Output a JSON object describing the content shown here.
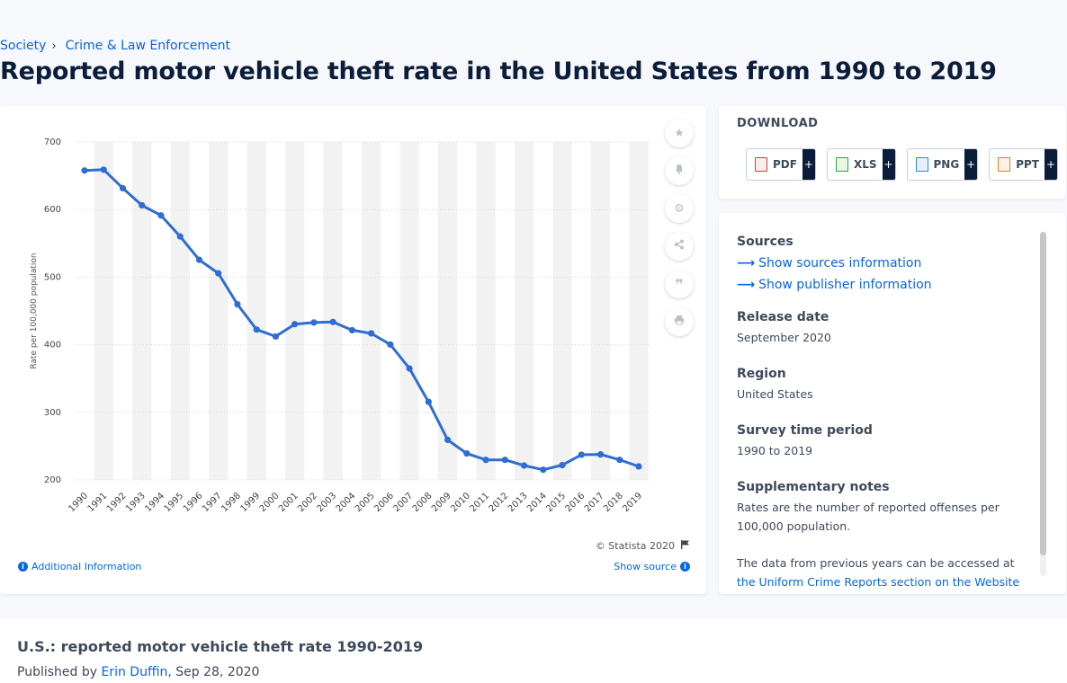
{
  "breadcrumb": {
    "items": [
      "Society",
      "Crime & Law Enforcement"
    ],
    "separator": "›"
  },
  "page_title": "Reported motor vehicle theft rate in the United States from 1990 to 2019",
  "chart_data": {
    "type": "line",
    "title": "",
    "xlabel": "",
    "ylabel": "Rate per 100,000 population",
    "categories": [
      "1990",
      "1991",
      "1992",
      "1993",
      "1994",
      "1995",
      "1996",
      "1997",
      "1998",
      "1999",
      "2000",
      "2001",
      "2002",
      "2003",
      "2004",
      "2005",
      "2006",
      "2007",
      "2008",
      "2009",
      "2010",
      "2011",
      "2012",
      "2013",
      "2014",
      "2015",
      "2016",
      "2017",
      "2018",
      "2019"
    ],
    "series": [
      {
        "values": [
          657.8,
          659.0,
          631.6,
          606.3,
          591.3,
          560.3,
          525.7,
          505.7,
          459.9,
          422.5,
          412.2,
          430.5,
          432.9,
          433.7,
          421.5,
          416.8,
          400.2,
          364.9,
          315.4,
          259.2,
          239.1,
          229.6,
          229.7,
          221.3,
          215.0,
          221.9,
          237.3,
          237.7,
          229.7,
          219.9
        ]
      }
    ],
    "ylim": [
      200,
      700
    ],
    "yticks": [
      200,
      300,
      400,
      500,
      600,
      700
    ],
    "grid": true,
    "line_color": "#2f6dd2",
    "band_color": "#f2f2f2"
  },
  "tools": {
    "icons": [
      "star-icon",
      "bell-icon",
      "gear-icon",
      "share-icon",
      "quote-icon",
      "print-icon"
    ]
  },
  "copyright": "© Statista 2020",
  "additional_info": "Additional Information",
  "show_source": "Show source",
  "download": {
    "title": "DOWNLOAD",
    "buttons": [
      {
        "label": "PDF",
        "plus": "+",
        "color": "#d63a3a"
      },
      {
        "label": "XLS",
        "plus": "+",
        "color": "#3a9d3a"
      },
      {
        "label": "PNG",
        "plus": "+",
        "color": "#3a7fd6"
      },
      {
        "label": "PPT",
        "plus": "+",
        "color": "#e07a2a"
      }
    ]
  },
  "sources": {
    "heading": "Sources",
    "show_sources": "Show sources information",
    "show_publisher": "Show publisher information",
    "release_date_label": "Release date",
    "release_date": "September 2020",
    "region_label": "Region",
    "region": "United States",
    "survey_label": "Survey time period",
    "survey": "1990 to 2019",
    "supp_label": "Supplementary notes",
    "supp_text": "Rates are the number of reported offenses per 100,000 population.",
    "supp_text2": "The data from previous years can be accessed at",
    "supp_link": "the Uniform Crime Reports section on the Website of the FBI."
  },
  "bottom": {
    "title": "U.S.: reported motor vehicle theft rate 1990-2019",
    "published_prefix": "Published by",
    "author": "Erin Duffin",
    "date": ", Sep 28, 2020"
  }
}
